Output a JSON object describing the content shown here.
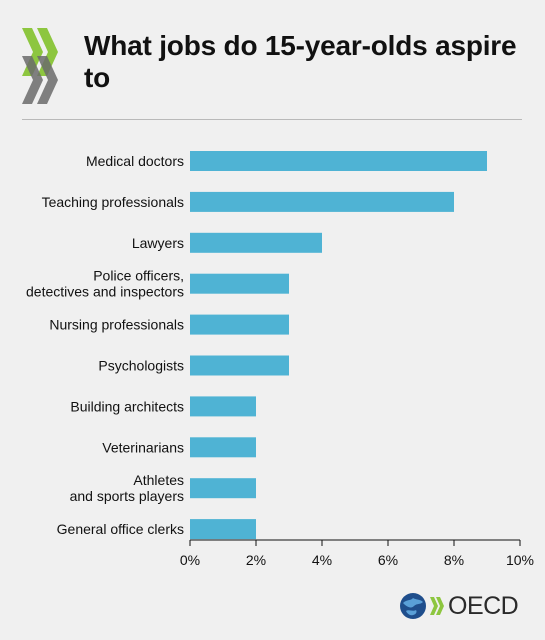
{
  "title": "What jobs do 15-year-olds aspire to",
  "brand": {
    "name": "OECD",
    "accent": "#8dc63f",
    "logo_icon": "oecd-chevrons-icon",
    "globe_icon": "globe-icon"
  },
  "chart_data": {
    "type": "bar",
    "orientation": "horizontal",
    "title": "What jobs do 15-year-olds aspire to",
    "xlabel": "",
    "ylabel": "",
    "xlim": [
      0,
      10
    ],
    "x_ticks": [
      0,
      2,
      4,
      6,
      8,
      10
    ],
    "x_tick_labels": [
      "0%",
      "2%",
      "4%",
      "6%",
      "8%",
      "10%"
    ],
    "grid": false,
    "bar_color": "#4fb3d4",
    "categories": [
      [
        "Medical doctors"
      ],
      [
        "Teaching professionals"
      ],
      [
        "Lawyers"
      ],
      [
        "Police officers,",
        "detectives and inspectors"
      ],
      [
        "Nursing professionals"
      ],
      [
        "Psychologists"
      ],
      [
        "Building architects"
      ],
      [
        "Veterinarians"
      ],
      [
        "Athletes",
        "and sports players"
      ],
      [
        "General office clerks"
      ]
    ],
    "values": [
      9,
      8,
      4,
      3,
      3,
      3,
      2,
      2,
      2,
      2
    ]
  }
}
